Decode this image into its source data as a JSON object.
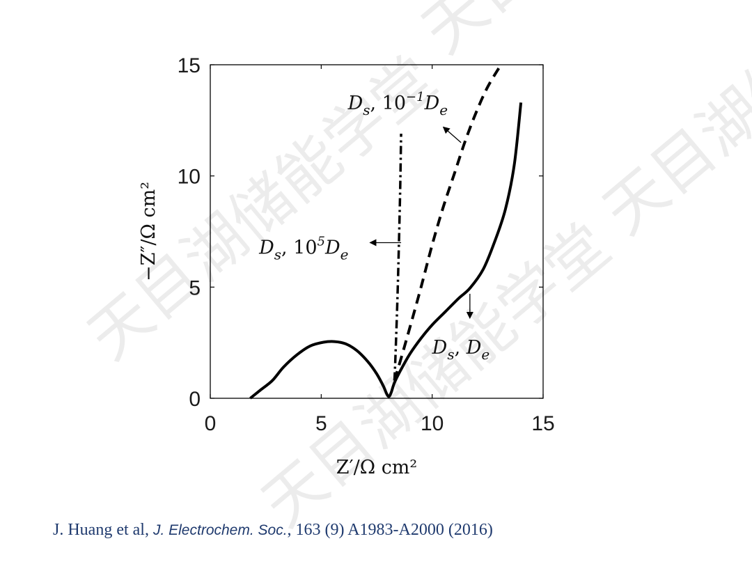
{
  "chart_data": {
    "type": "line",
    "title": "",
    "xlabel": "Z′/Ω cm²",
    "ylabel": "−Z″/Ω cm²",
    "xlim": [
      0,
      15
    ],
    "ylim": [
      0,
      15
    ],
    "x_ticks": [
      "0",
      "5",
      "10",
      "15"
    ],
    "y_ticks": [
      "0",
      "5",
      "10",
      "15"
    ],
    "grid": false,
    "legend": "none",
    "series": [
      {
        "name": "Ds, De",
        "style": "solid",
        "color": "#000000",
        "points": [
          [
            1.8,
            0
          ],
          [
            2.3,
            0.4
          ],
          [
            2.8,
            0.8
          ],
          [
            3.3,
            1.4
          ],
          [
            3.9,
            1.95
          ],
          [
            4.5,
            2.35
          ],
          [
            5.1,
            2.52
          ],
          [
            5.6,
            2.55
          ],
          [
            6.1,
            2.45
          ],
          [
            6.6,
            2.15
          ],
          [
            7.1,
            1.65
          ],
          [
            7.5,
            1.1
          ],
          [
            7.8,
            0.55
          ],
          [
            7.95,
            0.2
          ],
          [
            8.05,
            0.08
          ],
          [
            8.15,
            0.25
          ],
          [
            8.3,
            0.7
          ],
          [
            8.6,
            1.3
          ],
          [
            9.0,
            2.0
          ],
          [
            9.5,
            2.7
          ],
          [
            10.0,
            3.3
          ],
          [
            10.6,
            3.9
          ],
          [
            11.2,
            4.5
          ],
          [
            11.7,
            4.95
          ],
          [
            12.3,
            5.8
          ],
          [
            12.8,
            7.0
          ],
          [
            13.3,
            8.5
          ],
          [
            13.7,
            10.5
          ],
          [
            14.0,
            13.3
          ]
        ]
      },
      {
        "name": "Ds, 10⁻¹De",
        "style": "dashed",
        "color": "#000000",
        "points": [
          [
            8.3,
            0.8
          ],
          [
            8.6,
            1.8
          ],
          [
            9.0,
            3.2
          ],
          [
            9.5,
            5.0
          ],
          [
            10.0,
            6.9
          ],
          [
            10.5,
            8.6
          ],
          [
            11.0,
            10.1
          ],
          [
            11.5,
            11.6
          ],
          [
            12.0,
            12.9
          ],
          [
            12.5,
            14.0
          ],
          [
            13.1,
            15.0
          ]
        ]
      },
      {
        "name": "Ds, 10⁵De",
        "style": "dash-dot",
        "color": "#000000",
        "points": [
          [
            8.3,
            0.8
          ],
          [
            8.35,
            2.0
          ],
          [
            8.45,
            5.0
          ],
          [
            8.55,
            9.0
          ],
          [
            8.6,
            11.9
          ]
        ]
      }
    ],
    "annotations": [
      {
        "text_main": "D",
        "sub1": "s",
        "mid": ", 10",
        "sup": "−1",
        "main2": "D",
        "sub2": "e",
        "x": 6.2,
        "y": 13.0,
        "arrow_from": [
          11.3,
          11.5
        ],
        "arrow_to": [
          10.5,
          12.2
        ]
      },
      {
        "text_main": "D",
        "sub1": "s",
        "mid": ", 10",
        "sup": "5",
        "main2": "D",
        "sub2": "e",
        "x": 2.2,
        "y": 6.5,
        "arrow_from": [
          8.6,
          7.0
        ],
        "arrow_to": [
          7.2,
          7.0
        ]
      },
      {
        "text_main": "D",
        "sub1": "s",
        "mid": ", ",
        "sup": "",
        "main2": "D",
        "sub2": "e",
        "x": 10.0,
        "y": 2.0,
        "arrow_from": [
          11.7,
          4.7
        ],
        "arrow_to": [
          11.7,
          3.6
        ]
      }
    ]
  },
  "citation": {
    "authors": "J. Huang et al, ",
    "journal": "J. Electrochem. Soc.",
    "details": ", 163 (9) A1983-A2000 (2016)"
  },
  "watermark": {
    "text": "天目湖储能学堂"
  }
}
